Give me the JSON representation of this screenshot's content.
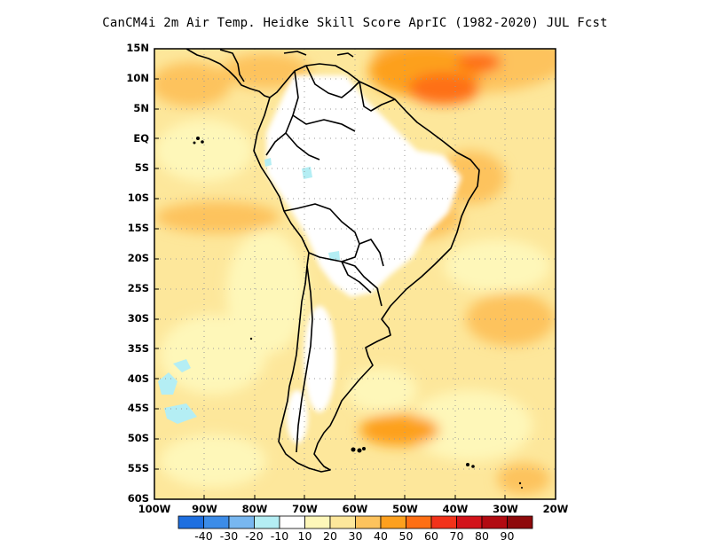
{
  "title": "CanCM4i  2m Air Temp. Heidke Skill Score AprIC (1982-2020) JUL Fcst",
  "map": {
    "lat_labels": [
      "15N",
      "10N",
      "5N",
      "EQ",
      "5S",
      "10S",
      "15S",
      "20S",
      "25S",
      "30S",
      "35S",
      "40S",
      "45S",
      "50S",
      "55S",
      "60S"
    ],
    "lon_labels": [
      "100W",
      "90W",
      "80W",
      "70W",
      "60W",
      "50W",
      "40W",
      "30W",
      "20W"
    ],
    "extent": {
      "lon_min": -100,
      "lon_max": -20,
      "lat_min": -60,
      "lat_max": 15
    },
    "gridlines": "dotted"
  },
  "colorbar": {
    "labels": [
      "-40",
      "-30",
      "-20",
      "-10",
      "10",
      "20",
      "30",
      "40",
      "50",
      "60",
      "70",
      "80",
      "90"
    ],
    "colors": [
      "#1e6fe0",
      "#3c8ce8",
      "#78b7f0",
      "#b4eef4",
      "#ffffff",
      "#fef7b9",
      "#fde79b",
      "#fdc35d",
      "#fda01e",
      "#fe6f14",
      "#f2321a",
      "#d2131a",
      "#b20b12",
      "#8e0a0c"
    ]
  }
}
